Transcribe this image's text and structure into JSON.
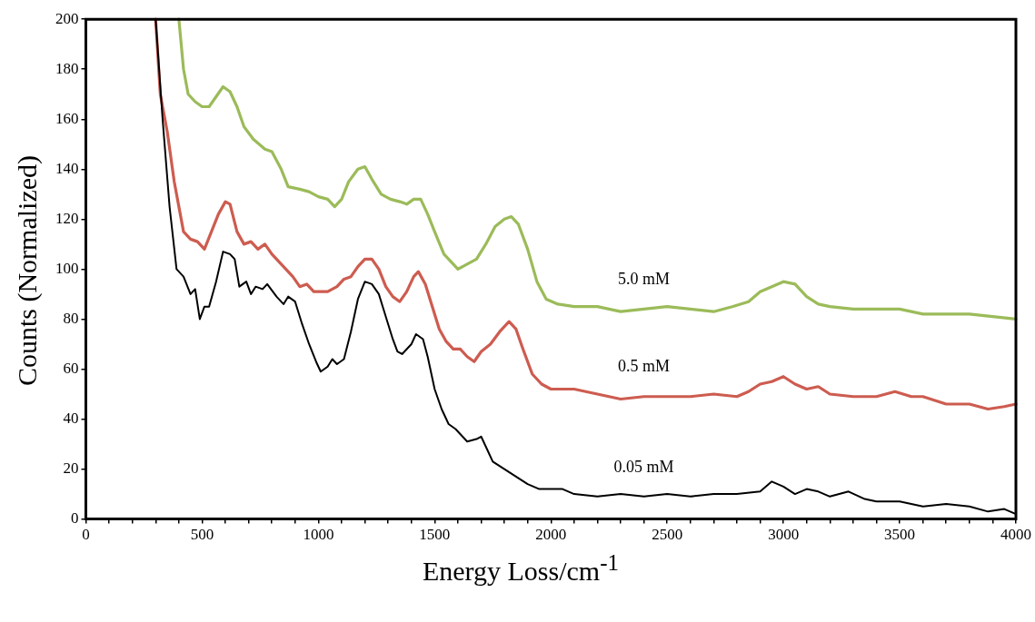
{
  "chart_data": {
    "type": "line",
    "xlabel": "Energy Loss/cm$^{-1}$",
    "ylabel": "Counts (Normalized)",
    "xlim": [
      0,
      4000
    ],
    "ylim": [
      0,
      200
    ],
    "xticks": [
      0,
      {
        "value": 100,
        "label": null
      },
      {
        "value": 200,
        "label": null
      },
      {
        "value": 300,
        "label": null
      },
      {
        "value": 400,
        "label": null
      },
      500,
      {
        "value": 600,
        "label": null
      },
      {
        "value": 700,
        "label": null
      },
      {
        "value": 800,
        "label": null
      },
      {
        "value": 900,
        "label": null
      },
      1000,
      {
        "value": 1100,
        "label": null
      },
      {
        "value": 1200,
        "label": null
      },
      {
        "value": 1300,
        "label": null
      },
      {
        "value": 1400,
        "label": null
      },
      1500,
      {
        "value": 1600,
        "label": null
      },
      {
        "value": 1700,
        "label": null
      },
      {
        "value": 1800,
        "label": null
      },
      {
        "value": 1900,
        "label": null
      },
      2000,
      {
        "value": 2100,
        "label": null
      },
      {
        "value": 2200,
        "label": null
      },
      {
        "value": 2300,
        "label": null
      },
      {
        "value": 2400,
        "label": null
      },
      2500,
      {
        "value": 2600,
        "label": null
      },
      {
        "value": 2700,
        "label": null
      },
      {
        "value": 2800,
        "label": null
      },
      {
        "value": 2900,
        "label": null
      },
      3000,
      {
        "value": 3100,
        "label": null
      },
      {
        "value": 3200,
        "label": null
      },
      {
        "value": 3300,
        "label": null
      },
      {
        "value": 3400,
        "label": null
      },
      3500,
      {
        "value": 3600,
        "label": null
      },
      {
        "value": 3700,
        "label": null
      },
      {
        "value": 3800,
        "label": null
      },
      {
        "value": 3900,
        "label": null
      },
      4000
    ],
    "yticks": [
      0,
      20,
      40,
      60,
      80,
      100,
      120,
      140,
      160,
      180,
      200
    ],
    "grid": false,
    "legend": false,
    "marker": "none",
    "line_style": "solid",
    "series": [
      {
        "name": "0.05 mM",
        "color": "#000000",
        "x": [
          300,
          330,
          360,
          390,
          420,
          450,
          470,
          490,
          510,
          530,
          560,
          590,
          620,
          640,
          660,
          690,
          710,
          730,
          760,
          780,
          820,
          850,
          870,
          900,
          930,
          960,
          990,
          1010,
          1040,
          1060,
          1080,
          1110,
          1140,
          1170,
          1200,
          1230,
          1260,
          1290,
          1320,
          1340,
          1360,
          1380,
          1400,
          1420,
          1450,
          1470,
          1500,
          1530,
          1560,
          1590,
          1620,
          1640,
          1680,
          1700,
          1720,
          1750,
          1800,
          1850,
          1900,
          1950,
          2000,
          2050,
          2100,
          2200,
          2300,
          2400,
          2500,
          2600,
          2700,
          2800,
          2900,
          2950,
          3000,
          3050,
          3100,
          3150,
          3200,
          3280,
          3350,
          3400,
          3500,
          3600,
          3700,
          3800,
          3880,
          3950,
          4000
        ],
        "values": [
          200,
          160,
          125,
          100,
          97,
          90,
          92,
          80,
          85,
          85,
          95,
          107,
          106,
          104,
          93,
          95,
          90,
          93,
          92,
          94,
          89,
          86,
          89,
          87,
          78,
          70,
          63,
          59,
          61,
          64,
          62,
          64,
          75,
          88,
          95,
          94,
          90,
          81,
          72,
          67,
          66,
          68,
          70,
          74,
          72,
          65,
          52,
          44,
          38,
          36,
          33,
          31,
          32,
          33,
          29,
          23,
          20,
          17,
          14,
          12,
          12,
          12,
          10,
          9,
          10,
          9,
          10,
          9,
          10,
          10,
          11,
          15,
          13,
          10,
          12,
          11,
          9,
          11,
          8,
          7,
          7,
          5,
          6,
          5,
          3,
          4,
          2
        ]
      },
      {
        "name": "0.5 mM",
        "color": "#cd5c50",
        "x": [
          300,
          320,
          350,
          380,
          400,
          420,
          450,
          480,
          510,
          540,
          570,
          600,
          620,
          650,
          680,
          710,
          740,
          770,
          800,
          830,
          860,
          890,
          920,
          950,
          980,
          1010,
          1040,
          1080,
          1110,
          1140,
          1170,
          1200,
          1230,
          1260,
          1290,
          1320,
          1350,
          1380,
          1410,
          1430,
          1460,
          1490,
          1520,
          1550,
          1580,
          1610,
          1640,
          1670,
          1700,
          1740,
          1780,
          1820,
          1850,
          1880,
          1920,
          1960,
          2000,
          2050,
          2100,
          2150,
          2200,
          2250,
          2300,
          2400,
          2500,
          2600,
          2700,
          2800,
          2850,
          2900,
          2950,
          3000,
          3050,
          3100,
          3150,
          3200,
          3300,
          3400,
          3480,
          3550,
          3600,
          3700,
          3800,
          3880,
          3950,
          4000
        ],
        "values": [
          200,
          170,
          155,
          135,
          125,
          115,
          112,
          111,
          108,
          115,
          122,
          127,
          126,
          115,
          110,
          111,
          108,
          110,
          106,
          103,
          100,
          97,
          93,
          94,
          91,
          91,
          91,
          93,
          96,
          97,
          101,
          104,
          104,
          100,
          93,
          89,
          87,
          91,
          97,
          99,
          94,
          85,
          76,
          71,
          68,
          68,
          65,
          63,
          67,
          70,
          75,
          79,
          76,
          68,
          58,
          54,
          52,
          52,
          52,
          51,
          50,
          49,
          48,
          49,
          49,
          49,
          50,
          49,
          51,
          54,
          55,
          57,
          54,
          52,
          53,
          50,
          49,
          49,
          51,
          49,
          49,
          46,
          46,
          44,
          45,
          46
        ]
      },
      {
        "name": "5.0 mM",
        "color": "#9bbb59",
        "x": [
          400,
          420,
          440,
          470,
          500,
          530,
          560,
          590,
          620,
          650,
          680,
          720,
          770,
          800,
          840,
          870,
          920,
          960,
          1000,
          1040,
          1070,
          1100,
          1130,
          1170,
          1200,
          1230,
          1270,
          1310,
          1350,
          1380,
          1410,
          1440,
          1470,
          1500,
          1540,
          1570,
          1600,
          1640,
          1680,
          1720,
          1760,
          1800,
          1830,
          1860,
          1900,
          1940,
          1980,
          2030,
          2100,
          2200,
          2300,
          2400,
          2500,
          2600,
          2700,
          2780,
          2850,
          2900,
          2950,
          3000,
          3050,
          3100,
          3150,
          3200,
          3300,
          3400,
          3500,
          3600,
          3700,
          3800,
          3900,
          4000
        ],
        "values": [
          200,
          180,
          170,
          167,
          165,
          165,
          169,
          173,
          171,
          165,
          157,
          152,
          148,
          147,
          140,
          133,
          132,
          131,
          129,
          128,
          125,
          128,
          135,
          140,
          141,
          136,
          130,
          128,
          127,
          126,
          128,
          128,
          122,
          115,
          106,
          103,
          100,
          102,
          104,
          110,
          117,
          120,
          121,
          118,
          108,
          95,
          88,
          86,
          85,
          85,
          83,
          84,
          85,
          84,
          83,
          85,
          87,
          91,
          93,
          95,
          94,
          89,
          86,
          85,
          84,
          84,
          84,
          82,
          82,
          82,
          81,
          80
        ]
      }
    ]
  }
}
